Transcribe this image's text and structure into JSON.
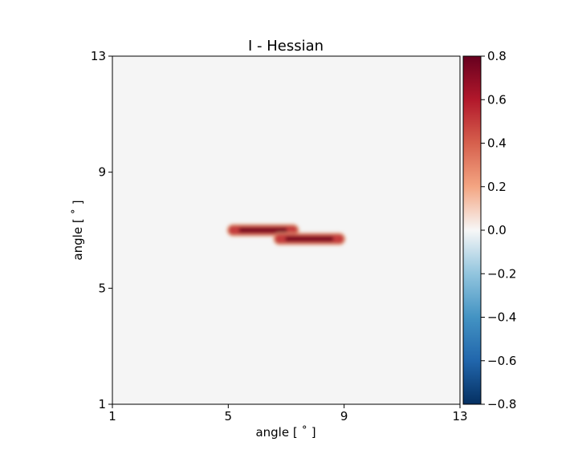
{
  "chart_data": {
    "type": "heatmap",
    "title": "I - Hessian",
    "xlabel": "angle [$^\\circ$]",
    "ylabel": "angle [$^\\circ$]",
    "xlabel_display": "angle [ ˚ ]",
    "ylabel_display": "angle [ ˚ ]",
    "xlim": [
      1,
      13
    ],
    "ylim": [
      1,
      13
    ],
    "xticks": [
      1,
      5,
      9,
      13
    ],
    "xtick_labels": [
      "1",
      "5",
      "9",
      "13"
    ],
    "yticks": [
      1,
      5,
      9,
      13
    ],
    "ytick_labels": [
      "1",
      "5",
      "9",
      "13"
    ],
    "colormap": "RdBu_r",
    "colorbar": {
      "min": -0.8,
      "max": 0.8,
      "ticks": [
        -0.8,
        -0.6,
        -0.4,
        -0.2,
        0.0,
        0.2,
        0.4,
        0.6,
        0.8
      ],
      "tick_labels": [
        "−0.8",
        "−0.6",
        "−0.4",
        "−0.2",
        "0.0",
        "0.2",
        "0.4",
        "0.6",
        "0.8"
      ]
    },
    "background_value": 0.0,
    "features": [
      {
        "x_range": [
          5.0,
          7.4
        ],
        "y": 7.0,
        "peak_value": 0.8
      },
      {
        "x_range": [
          6.6,
          9.0
        ],
        "y": 6.7,
        "peak_value": 0.8
      }
    ],
    "grid": false
  }
}
